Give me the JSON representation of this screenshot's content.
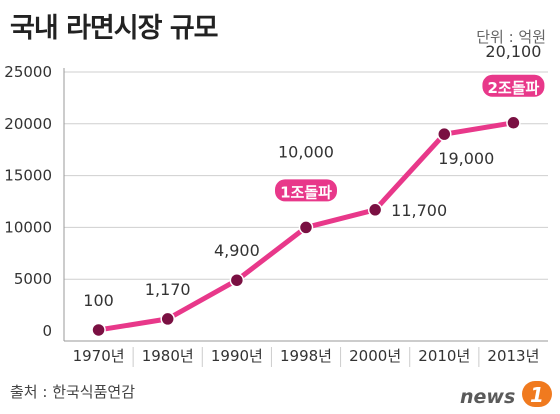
{
  "title": "국내 라면시장 규모",
  "unit_label": "단위 : 억원",
  "source": "출처 : 한국식품연감",
  "logo": {
    "text": "news",
    "mark": "1"
  },
  "colors": {
    "line": "#e8388a",
    "marker": "#7a1042",
    "badge": "#e8388a",
    "grid": "#cfcfcf",
    "axis": "#999999"
  },
  "chart_data": {
    "type": "line",
    "title": "국내 라면시장 규모",
    "unit": "단위 : 억원",
    "categories": [
      "1970년",
      "1980년",
      "1990년",
      "1998년",
      "2000년",
      "2010년",
      "2013년"
    ],
    "series": [
      {
        "name": "",
        "values": [
          100,
          1170,
          4900,
          10000,
          11700,
          19000,
          20100
        ]
      }
    ],
    "data_labels": [
      "100",
      "1,170",
      "4,900",
      "10,000",
      "11,700",
      "19,000",
      "20,100"
    ],
    "y_ticks": [
      0,
      5000,
      10000,
      15000,
      20000,
      25000
    ],
    "y_tick_labels": [
      "0",
      "5000",
      "10000",
      "15000",
      "20000",
      "25000"
    ],
    "ylim": [
      0,
      25000
    ],
    "grid": true,
    "annotations": [
      {
        "category": "1998년",
        "text": "1조돌파"
      },
      {
        "category": "2013년",
        "text": "2조돌파"
      }
    ]
  }
}
